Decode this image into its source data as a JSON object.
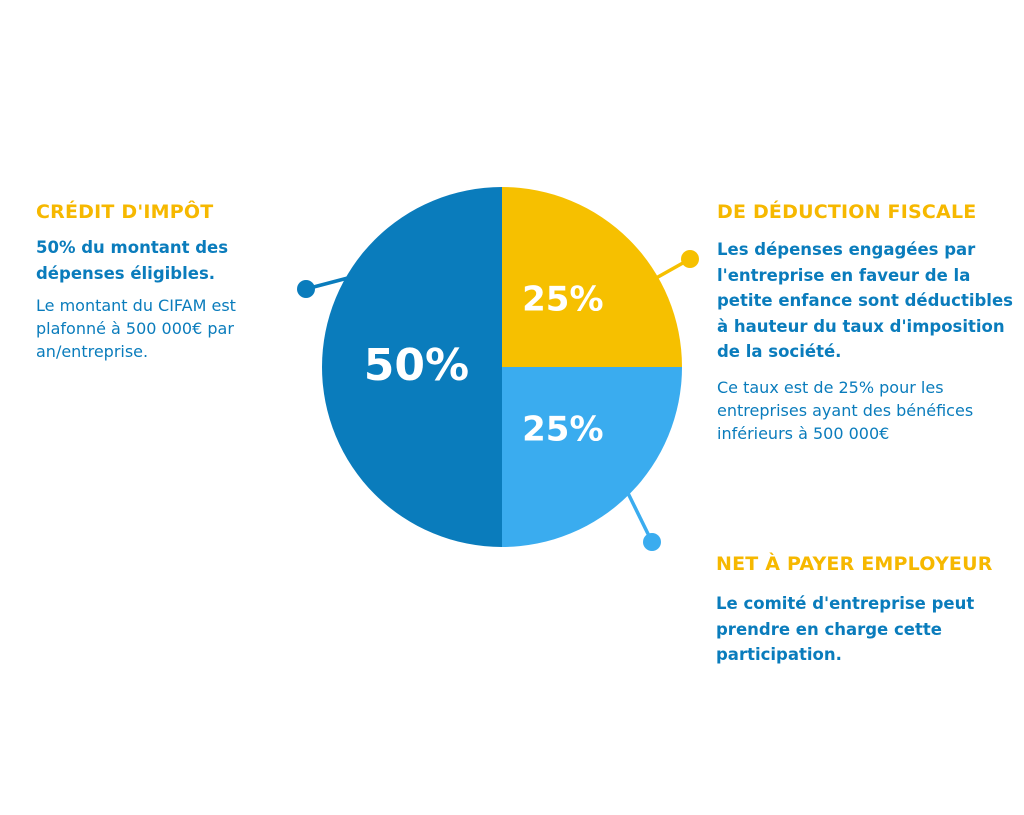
{
  "left": {
    "heading": "CRÉDIT D'IMPÔT",
    "bold": "50% du montant des dépenses éligibles.",
    "text": "Le montant du CIFAM est plafonné à 500 000€ par an/entreprise."
  },
  "right_top": {
    "heading": "DE DÉDUCTION FISCALE",
    "bold": "Les dépenses engagées par l'entreprise en faveur de la petite enfance sont déductibles à hauteur du taux d'imposition de la société.",
    "text": "Ce taux est de 25% pour les entreprises ayant des bénéfices inférieurs à 500 000€"
  },
  "right_bottom": {
    "heading": "NET À PAYER EMPLOYEUR",
    "bold": "Le comité d'entreprise peut prendre en charge cette participation."
  },
  "colors": {
    "heading": "#f6b800",
    "text": "#0a7cbc",
    "slice_dark_blue": "#0a7cbc",
    "slice_yellow": "#f6c000",
    "slice_light_blue": "#3aacef"
  },
  "chart_data": {
    "type": "pie",
    "title": "",
    "slices": [
      {
        "label": "50%",
        "value": 50,
        "color": "#0a7cbc"
      },
      {
        "label": "25%",
        "value": 25,
        "color": "#f6c000"
      },
      {
        "label": "25%",
        "value": 25,
        "color": "#3aacef"
      }
    ]
  }
}
